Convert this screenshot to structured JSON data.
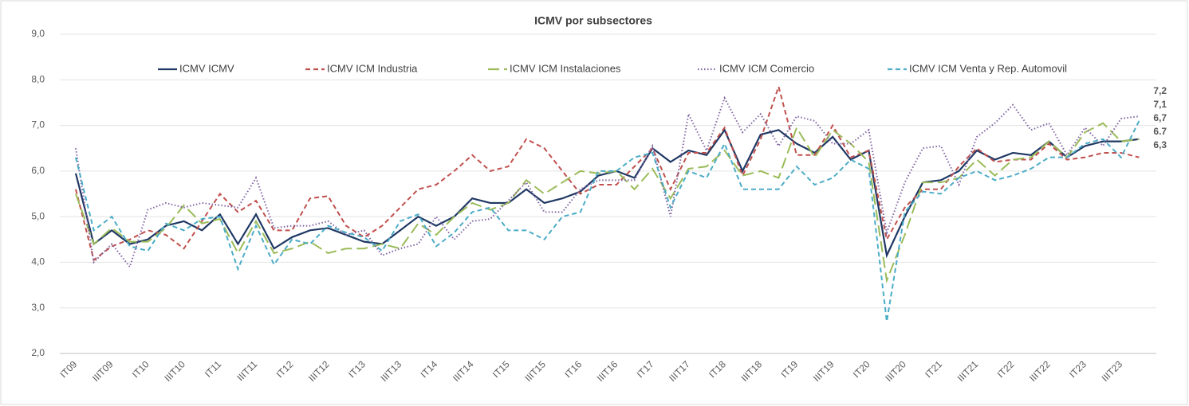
{
  "chart_data": {
    "type": "line",
    "title": "ICMV por subsectores",
    "categories": [
      "IT09",
      null,
      "IIIT09",
      null,
      "IT10",
      null,
      "IIIT10",
      null,
      "IT11",
      null,
      "IIIT11",
      null,
      "IT12",
      null,
      "IIIT12",
      null,
      "IT13",
      null,
      "IIIT13",
      null,
      "IT14",
      null,
      "IIIT14",
      null,
      "IT15",
      null,
      "IIIT15",
      null,
      "IT16",
      null,
      "IIIT16",
      null,
      "IT17",
      null,
      "IIIT17",
      null,
      "IT18",
      null,
      "IIIT18",
      null,
      "IT19",
      null,
      "IIIT19",
      null,
      "IT20",
      null,
      "IIIT20",
      null,
      "IT21",
      null,
      "IIIT21",
      null,
      "IT22",
      null,
      "IIIT22",
      null,
      "IT23",
      null,
      "IIIT23",
      null
    ],
    "ylim": [
      2,
      9
    ],
    "yticks": [
      {
        "value": 2,
        "label": "2,0"
      },
      {
        "value": 3,
        "label": "3,0"
      },
      {
        "value": 4,
        "label": "4,0"
      },
      {
        "value": 5,
        "label": "5,0"
      },
      {
        "value": 6,
        "label": "6,0"
      },
      {
        "value": 7,
        "label": "7,0"
      },
      {
        "value": 8,
        "label": "8,0"
      },
      {
        "value": 9,
        "label": "9,0"
      }
    ],
    "grid": true,
    "legend": "top",
    "series": [
      {
        "name": "ICMV ICMV",
        "color": "#1f3864",
        "dash": "solid",
        "values": [
          5.95,
          4.4,
          4.7,
          4.4,
          4.5,
          4.8,
          4.9,
          4.7,
          5.05,
          4.4,
          5.05,
          4.3,
          4.55,
          4.7,
          4.75,
          4.6,
          4.45,
          4.4,
          4.7,
          5.0,
          4.8,
          5.0,
          5.4,
          5.3,
          5.3,
          5.6,
          5.3,
          5.4,
          5.55,
          5.9,
          6.0,
          5.85,
          6.5,
          6.2,
          6.45,
          6.35,
          6.9,
          6.0,
          6.8,
          6.9,
          6.6,
          6.4,
          6.75,
          6.25,
          6.45,
          4.15,
          5.0,
          5.75,
          5.8,
          6.0,
          6.45,
          6.25,
          6.4,
          6.35,
          6.65,
          6.3,
          6.55,
          6.65,
          6.65,
          6.7
        ],
        "value_labels": [
          null,
          null,
          null,
          null,
          null,
          null,
          null,
          null,
          null,
          null,
          null,
          null,
          null,
          null,
          null,
          null,
          null,
          null,
          null,
          null,
          null,
          null,
          null,
          null,
          null,
          null,
          null,
          null,
          null,
          null,
          null,
          null,
          null,
          null,
          null,
          null,
          null,
          null,
          null,
          null,
          null,
          null,
          null,
          null,
          null,
          null,
          null,
          null,
          null,
          null,
          null,
          null,
          null,
          null,
          null,
          null,
          null,
          null,
          null,
          "6,7"
        ]
      },
      {
        "name": "ICMV ICM Industria",
        "color": "#c0504d",
        "dash": "dashed",
        "values": [
          5.6,
          4.05,
          4.35,
          4.5,
          4.7,
          4.6,
          4.3,
          4.9,
          5.5,
          5.1,
          5.35,
          4.7,
          4.7,
          5.4,
          5.45,
          4.8,
          4.55,
          4.8,
          5.2,
          5.6,
          5.7,
          6.0,
          6.35,
          6.0,
          6.1,
          6.7,
          6.5,
          6.0,
          5.5,
          5.7,
          5.7,
          6.1,
          6.5,
          5.6,
          6.4,
          6.4,
          6.95,
          5.9,
          6.7,
          7.85,
          6.35,
          6.35,
          7.0,
          6.3,
          6.45,
          4.5,
          5.2,
          5.6,
          5.6,
          6.1,
          6.5,
          6.2,
          6.25,
          6.25,
          6.6,
          6.25,
          6.3,
          6.4,
          6.4,
          6.3
        ],
        "value_labels": [
          null,
          null,
          null,
          null,
          null,
          null,
          null,
          null,
          null,
          null,
          null,
          null,
          null,
          null,
          null,
          null,
          null,
          null,
          null,
          null,
          null,
          null,
          null,
          null,
          null,
          null,
          null,
          null,
          null,
          null,
          null,
          null,
          null,
          null,
          null,
          null,
          null,
          null,
          null,
          null,
          null,
          null,
          null,
          null,
          null,
          null,
          null,
          null,
          null,
          null,
          null,
          null,
          null,
          null,
          null,
          null,
          null,
          null,
          null,
          "6,3"
        ]
      },
      {
        "name": "ICMV ICM Instalaciones",
        "color": "#9bbb59",
        "dash": "longdash",
        "values": [
          5.5,
          4.4,
          4.75,
          4.45,
          4.45,
          4.75,
          5.25,
          4.85,
          4.95,
          4.2,
          4.9,
          4.2,
          4.3,
          4.45,
          4.2,
          4.3,
          4.3,
          4.4,
          4.3,
          4.85,
          4.6,
          5.0,
          5.3,
          5.15,
          5.3,
          5.8,
          5.5,
          5.75,
          6.0,
          5.95,
          6.0,
          5.6,
          6.05,
          5.4,
          6.05,
          6.1,
          6.45,
          5.9,
          6.0,
          5.85,
          6.95,
          6.3,
          6.9,
          6.6,
          6.2,
          3.6,
          4.6,
          5.75,
          5.75,
          5.85,
          6.25,
          5.9,
          6.25,
          6.3,
          6.65,
          6.3,
          6.85,
          7.05,
          6.65,
          6.7
        ],
        "value_labels": [
          null,
          null,
          null,
          null,
          null,
          null,
          null,
          null,
          null,
          null,
          null,
          null,
          null,
          null,
          null,
          null,
          null,
          null,
          null,
          null,
          null,
          null,
          null,
          null,
          null,
          null,
          null,
          null,
          null,
          null,
          null,
          null,
          null,
          null,
          null,
          null,
          null,
          null,
          null,
          null,
          null,
          null,
          null,
          null,
          null,
          null,
          null,
          null,
          null,
          null,
          null,
          null,
          null,
          null,
          null,
          null,
          null,
          null,
          null,
          "6.7"
        ]
      },
      {
        "name": "ICMV ICM Comercio",
        "color": "#8064a2",
        "dash": "dotted",
        "values": [
          6.5,
          4.0,
          4.4,
          3.9,
          5.15,
          5.3,
          5.2,
          5.3,
          5.25,
          5.2,
          5.85,
          4.75,
          4.8,
          4.8,
          4.9,
          4.6,
          4.7,
          4.15,
          4.3,
          4.4,
          5.0,
          4.5,
          4.9,
          4.95,
          5.35,
          5.75,
          5.1,
          5.1,
          5.6,
          5.8,
          5.8,
          5.8,
          6.55,
          5.0,
          7.25,
          6.45,
          7.6,
          6.85,
          7.25,
          6.55,
          7.2,
          7.1,
          6.6,
          6.6,
          6.9,
          4.65,
          5.75,
          6.5,
          6.55,
          5.7,
          6.75,
          7.05,
          7.45,
          6.9,
          7.05,
          6.35,
          6.95,
          6.55,
          7.15,
          7.2
        ],
        "value_labels": [
          null,
          null,
          null,
          null,
          null,
          null,
          null,
          null,
          null,
          null,
          null,
          null,
          null,
          null,
          null,
          null,
          null,
          null,
          null,
          null,
          null,
          null,
          null,
          null,
          null,
          null,
          null,
          null,
          null,
          null,
          null,
          null,
          null,
          null,
          null,
          null,
          null,
          null,
          null,
          null,
          null,
          null,
          null,
          null,
          null,
          null,
          null,
          null,
          null,
          null,
          null,
          null,
          null,
          null,
          null,
          null,
          null,
          null,
          null,
          "7,2"
        ]
      },
      {
        "name": "ICMV ICM Venta y Rep. Automovil",
        "color": "#4bacc6",
        "dash": "dashed",
        "values": [
          6.3,
          4.7,
          5.0,
          4.35,
          4.25,
          4.85,
          4.7,
          4.95,
          5.0,
          3.85,
          4.8,
          3.95,
          4.5,
          4.4,
          4.8,
          4.65,
          4.55,
          4.25,
          4.9,
          5.05,
          4.35,
          4.65,
          5.1,
          5.2,
          4.7,
          4.7,
          4.5,
          5.0,
          5.1,
          6.0,
          6.0,
          6.3,
          6.4,
          5.2,
          6.0,
          5.85,
          6.6,
          5.6,
          5.6,
          5.6,
          6.1,
          5.7,
          5.85,
          6.25,
          6.05,
          2.7,
          5.1,
          5.55,
          5.5,
          5.85,
          6.0,
          5.8,
          5.9,
          6.05,
          6.3,
          6.3,
          6.6,
          6.7,
          6.3,
          7.1
        ],
        "value_labels": [
          null,
          null,
          null,
          null,
          null,
          null,
          null,
          null,
          null,
          null,
          null,
          null,
          null,
          null,
          null,
          null,
          null,
          null,
          null,
          null,
          null,
          null,
          null,
          null,
          null,
          null,
          null,
          null,
          null,
          null,
          null,
          null,
          null,
          null,
          null,
          null,
          null,
          null,
          null,
          null,
          null,
          null,
          null,
          null,
          null,
          null,
          null,
          null,
          null,
          null,
          null,
          null,
          null,
          null,
          null,
          null,
          null,
          null,
          null,
          "7,1"
        ]
      }
    ]
  }
}
